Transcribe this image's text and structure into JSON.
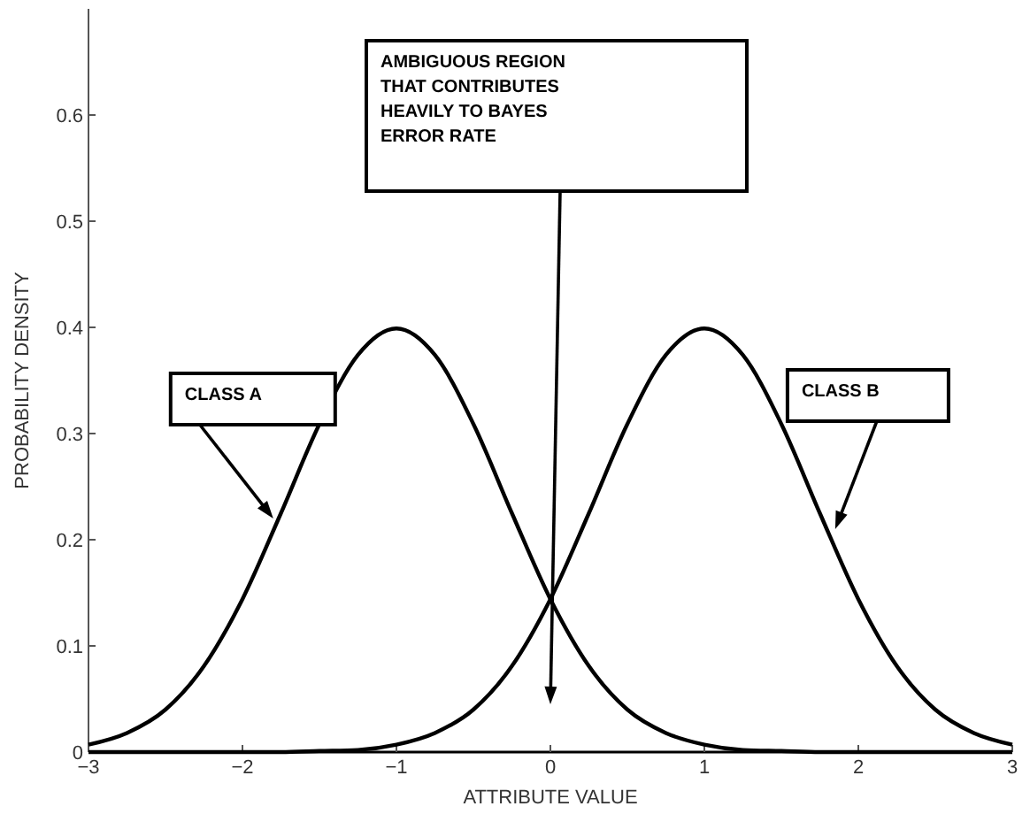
{
  "chart_data": {
    "type": "line",
    "xlabel": "ATTRIBUTE VALUE",
    "ylabel": "PROBABILITY DENSITY",
    "x": [
      -3,
      -2.75,
      -2.5,
      -2.25,
      -2,
      -1.75,
      -1.5,
      -1.25,
      -1,
      -0.75,
      -0.5,
      -0.25,
      0,
      0.25,
      0.5,
      0.75,
      1,
      1.25,
      1.5,
      1.75,
      2,
      2.25,
      2.5,
      2.75,
      3
    ],
    "series": [
      {
        "color": "#000000",
        "values": [
          0.007,
          0.018,
          0.04,
          0.081,
          0.144,
          0.225,
          0.309,
          0.374,
          0.399,
          0.374,
          0.309,
          0.225,
          0.144,
          0.081,
          0.04,
          0.018,
          0.007,
          0.002,
          0.001,
          0,
          0,
          0,
          0,
          0,
          0
        ]
      },
      {
        "color": "#000000",
        "values": [
          0,
          0,
          0,
          0,
          0,
          0,
          0.001,
          0.002,
          0.007,
          0.018,
          0.04,
          0.081,
          0.144,
          0.225,
          0.309,
          0.374,
          0.399,
          0.374,
          0.309,
          0.225,
          0.144,
          0.081,
          0.04,
          0.018,
          0.007
        ]
      }
    ],
    "xlim": [
      -3,
      3
    ],
    "ylim": [
      0,
      0.7
    ],
    "xticks": [
      {
        "value": -3,
        "label": "−3"
      },
      {
        "value": -2,
        "label": "−2"
      },
      {
        "value": -1,
        "label": "−1"
      },
      0,
      1,
      2,
      3
    ],
    "yticks": [
      0,
      0.1,
      0.2,
      0.3,
      0.4,
      0.5,
      0.6
    ],
    "grid": false,
    "line_style": "solid",
    "annotations": [
      {
        "text": "CLASS A",
        "x": -1.8,
        "y": 0.22
      },
      {
        "text": "CLASS B",
        "x": 1.85,
        "y": 0.21
      },
      "AMBIGUOUS REGION THAT CONTRIBUTES HEAVILY TO BAYES ERROR RATE"
    ]
  }
}
